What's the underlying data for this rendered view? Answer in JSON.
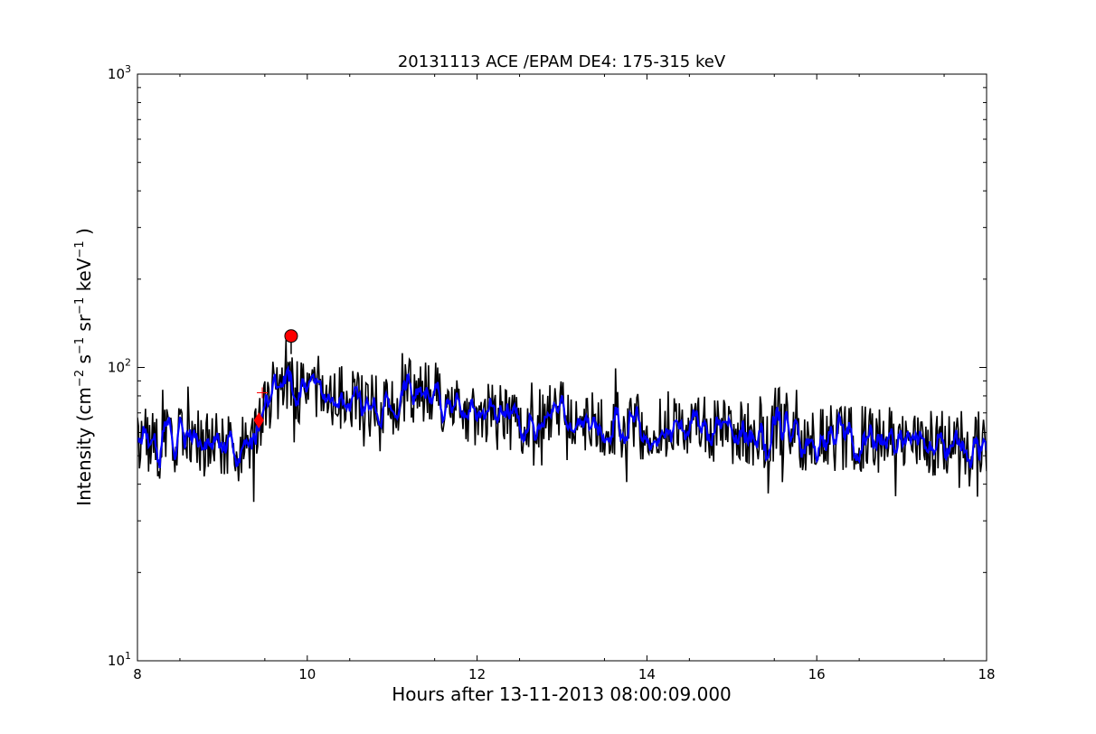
{
  "chart_data": {
    "type": "line",
    "title": "20131113 ACE /EPAM DE4: 175-315 keV",
    "xlabel": "Hours after 13-11-2013 08:00:09.000",
    "ylabel_parts": {
      "base": "Intensity (cm",
      "e1": "−2",
      "s": " s",
      "e2": "−1",
      "sr": " sr",
      "e3": "−1",
      "kev": " keV",
      "e4": "−1",
      "close": " )"
    },
    "xlim": [
      8,
      18
    ],
    "ylim": [
      10,
      1000
    ],
    "yscale": "log",
    "grid": false,
    "x_ticks": [
      {
        "value": 8,
        "label": "8"
      },
      {
        "value": 10,
        "label": "10"
      },
      {
        "value": 12,
        "label": "12"
      },
      {
        "value": 14,
        "label": "14"
      },
      {
        "value": 16,
        "label": "16"
      },
      {
        "value": 18,
        "label": "18"
      }
    ],
    "y_ticks": [
      {
        "value": 10,
        "base": "10",
        "exp": "1"
      },
      {
        "value": 100,
        "base": "10",
        "exp": "2"
      },
      {
        "value": 1000,
        "base": "10",
        "exp": "3"
      }
    ],
    "series": [
      {
        "style": "raw",
        "color": "#000000",
        "anchors_x": [
          8.0,
          8.25,
          8.5,
          8.75,
          9.0,
          9.25,
          9.38,
          9.45,
          9.55,
          9.65,
          9.8,
          9.9,
          10.0,
          10.3,
          10.6,
          10.9,
          11.2,
          11.5,
          11.8,
          12.0,
          12.3,
          12.6,
          13.0,
          13.4,
          13.8,
          14.2,
          14.6,
          15.0,
          15.4,
          15.8,
          16.2,
          16.6,
          17.0,
          17.4,
          17.8,
          18.0
        ],
        "anchors_y": [
          55,
          57,
          56,
          55,
          55,
          52,
          54,
          68,
          78,
          86,
          90,
          84,
          82,
          79,
          75,
          73,
          83,
          80,
          72,
          68,
          67,
          68,
          69,
          66,
          63,
          63,
          62,
          60,
          59,
          58,
          57,
          57,
          56,
          55,
          54,
          55
        ]
      },
      {
        "style": "smoothed",
        "color": "#0000ff",
        "anchors_x": [
          8.0,
          8.25,
          8.5,
          8.75,
          9.0,
          9.25,
          9.38,
          9.45,
          9.55,
          9.65,
          9.8,
          9.9,
          10.0,
          10.3,
          10.6,
          10.9,
          11.2,
          11.5,
          11.8,
          12.0,
          12.3,
          12.6,
          13.0,
          13.4,
          13.8,
          14.2,
          14.6,
          15.0,
          15.4,
          15.8,
          16.2,
          16.6,
          17.0,
          17.4,
          17.8,
          18.0
        ],
        "anchors_y": [
          55,
          57,
          56,
          55,
          55,
          52,
          54,
          68,
          78,
          86,
          90,
          84,
          82,
          79,
          75,
          73,
          83,
          80,
          72,
          68,
          67,
          68,
          69,
          66,
          63,
          63,
          62,
          60,
          59,
          58,
          57,
          57,
          56,
          55,
          54,
          55
        ]
      }
    ],
    "markers": [
      {
        "shape": "diamond",
        "x": 9.43,
        "y": 66,
        "color": "#ff0000"
      },
      {
        "shape": "plus",
        "x": 9.47,
        "y": 82,
        "color": "#ff0000"
      },
      {
        "shape": "circle",
        "x": 9.81,
        "y": 128,
        "color": "#ff0000"
      }
    ]
  }
}
